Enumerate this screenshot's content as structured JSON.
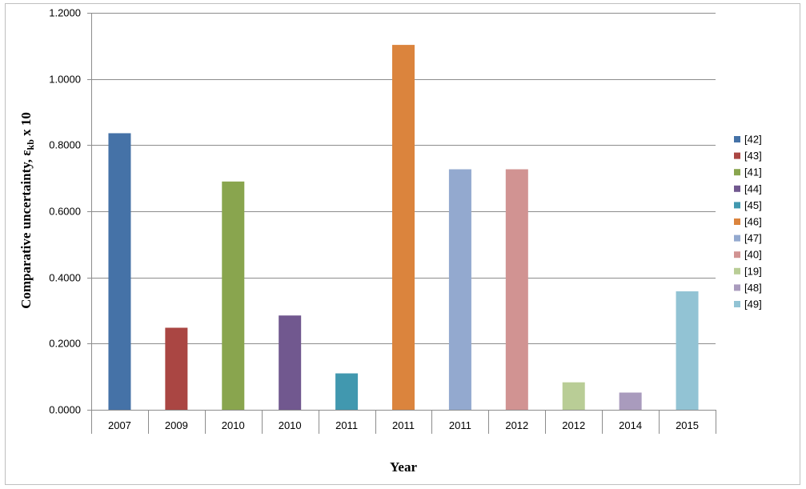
{
  "chart_data": {
    "type": "bar",
    "categories": [
      "2007",
      "2009",
      "2010",
      "2010",
      "2011",
      "2011",
      "2011",
      "2012",
      "2012",
      "2014",
      "2015"
    ],
    "series": [
      {
        "name": "[42]",
        "category_index": 0,
        "value": 0.836,
        "color": "#4572A7"
      },
      {
        "name": "[43]",
        "category_index": 1,
        "value": 0.248,
        "color": "#AA4643"
      },
      {
        "name": "[41]",
        "category_index": 2,
        "value": 0.69,
        "color": "#89A54E"
      },
      {
        "name": "[44]",
        "category_index": 3,
        "value": 0.285,
        "color": "#71588F"
      },
      {
        "name": "[45]",
        "category_index": 4,
        "value": 0.11,
        "color": "#4198AF"
      },
      {
        "name": "[46]",
        "category_index": 5,
        "value": 1.103,
        "color": "#DB843D"
      },
      {
        "name": "[47]",
        "category_index": 6,
        "value": 0.727,
        "color": "#93A9CF"
      },
      {
        "name": "[40]",
        "category_index": 7,
        "value": 0.727,
        "color": "#D19392"
      },
      {
        "name": "[19]",
        "category_index": 8,
        "value": 0.083,
        "color": "#B9CD96"
      },
      {
        "name": "[48]",
        "category_index": 9,
        "value": 0.052,
        "color": "#A99BBD"
      },
      {
        "name": "[49]",
        "category_index": 10,
        "value": 0.358,
        "color": "#92C3D4"
      }
    ],
    "xlabel": "Year",
    "ylabel_main": "Comparative uncertainty, ε",
    "ylabel_sub": "kb",
    "ylabel_suffix": " x 10",
    "ylim": [
      0,
      1.2
    ],
    "yticks": [
      "0.0000",
      "0.2000",
      "0.4000",
      "0.6000",
      "0.8000",
      "1.0000",
      "1.2000"
    ],
    "grid": "horizontal",
    "legend_position": "right"
  }
}
